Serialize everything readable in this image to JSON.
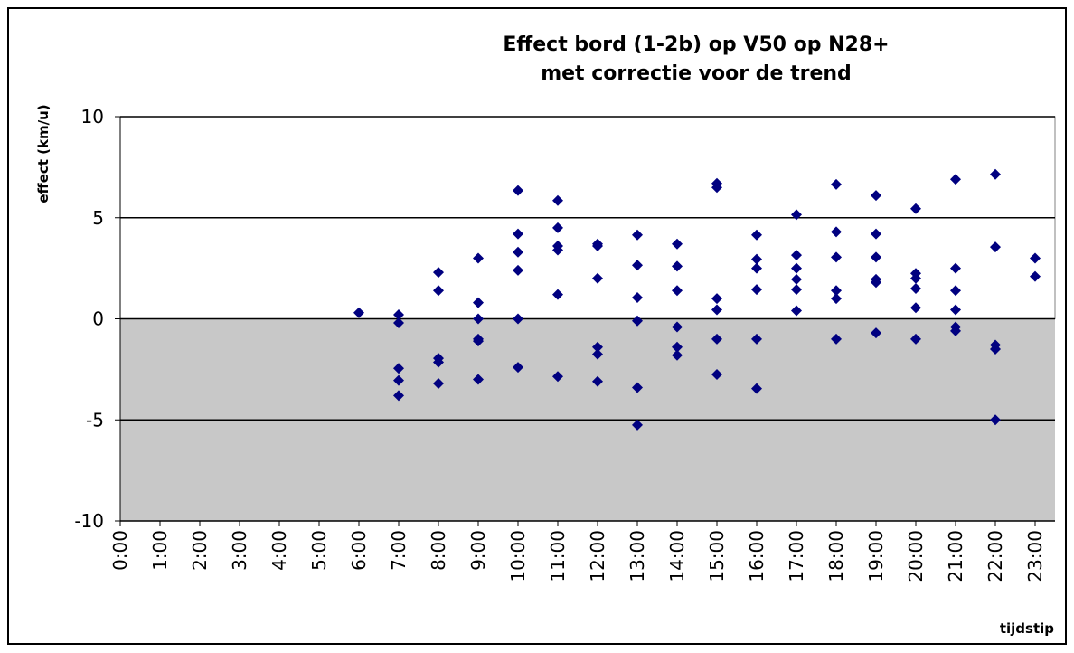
{
  "chart_data": {
    "type": "scatter",
    "title": [
      "Effect bord (1-2b) op V50 op N28+",
      "met correctie voor de trend"
    ],
    "ylabel": "effect (km/u)",
    "xlabel": "tijdstip",
    "color": "#000080",
    "grid": true,
    "xlim": [
      0,
      23.5
    ],
    "ylim": [
      -10,
      10
    ],
    "yticks": [
      -10,
      -5,
      0,
      5,
      10
    ],
    "xticks": [
      {
        "value": 0,
        "label": "0:00"
      },
      {
        "value": 1,
        "label": "1:00"
      },
      {
        "value": 2,
        "label": "2:00"
      },
      {
        "value": 3,
        "label": "3:00"
      },
      {
        "value": 4,
        "label": "4:00"
      },
      {
        "value": 5,
        "label": "5:00"
      },
      {
        "value": 6,
        "label": "6:00"
      },
      {
        "value": 7,
        "label": "7:00"
      },
      {
        "value": 8,
        "label": "8:00"
      },
      {
        "value": 9,
        "label": "9:00"
      },
      {
        "value": 10,
        "label": "10:00"
      },
      {
        "value": 11,
        "label": "11:00"
      },
      {
        "value": 12,
        "label": "12:00"
      },
      {
        "value": 13,
        "label": "13:00"
      },
      {
        "value": 14,
        "label": "14:00"
      },
      {
        "value": 15,
        "label": "15:00"
      },
      {
        "value": 16,
        "label": "16:00"
      },
      {
        "value": 17,
        "label": "17:00"
      },
      {
        "value": 18,
        "label": "18:00"
      },
      {
        "value": 19,
        "label": "19:00"
      },
      {
        "value": 20,
        "label": "20:00"
      },
      {
        "value": 21,
        "label": "21:00"
      },
      {
        "value": 22,
        "label": "22:00"
      },
      {
        "value": 23,
        "label": "23:00"
      }
    ],
    "x": [
      6,
      7,
      7,
      7,
      7,
      7,
      8,
      8,
      8,
      8,
      8,
      9,
      9,
      9,
      9,
      9,
      9,
      10,
      10,
      10,
      10,
      10,
      10,
      11,
      11,
      11,
      11,
      11,
      11,
      12,
      12,
      12,
      12,
      12,
      12,
      13,
      13,
      13,
      13,
      13,
      13,
      14,
      14,
      14,
      14,
      14,
      14,
      15,
      15,
      15,
      15,
      15,
      15,
      16,
      16,
      16,
      16,
      16,
      16,
      17,
      17,
      17,
      17,
      17,
      17,
      18,
      18,
      18,
      18,
      18,
      18,
      19,
      19,
      19,
      19,
      19,
      19,
      20,
      20,
      20,
      20,
      20,
      20,
      21,
      21,
      21,
      21,
      21,
      21,
      22,
      22,
      22,
      22,
      22,
      23,
      23
    ],
    "values": [
      0.3,
      0.2,
      -0.2,
      -2.45,
      -3.05,
      -3.8,
      2.3,
      1.4,
      -1.95,
      -2.15,
      -3.2,
      3.0,
      0.8,
      0,
      -1.0,
      -1.1,
      -3.0,
      6.35,
      4.2,
      3.3,
      2.4,
      0,
      -2.4,
      5.85,
      4.5,
      3.6,
      3.4,
      1.2,
      -2.85,
      3.7,
      3.6,
      2.0,
      -1.4,
      -1.75,
      -3.1,
      4.15,
      2.65,
      1.05,
      -0.1,
      -3.4,
      -5.25,
      3.7,
      2.6,
      1.4,
      -0.4,
      -1.4,
      -1.8,
      6.7,
      6.5,
      1.0,
      0.45,
      -1.0,
      -2.75,
      4.15,
      2.95,
      2.5,
      1.45,
      -1.0,
      -3.45,
      5.15,
      3.15,
      2.5,
      1.95,
      1.45,
      0.4,
      6.65,
      4.3,
      3.05,
      1.4,
      1.0,
      -1.0,
      6.1,
      4.2,
      3.05,
      1.95,
      1.8,
      -0.7,
      5.45,
      2.25,
      2.0,
      1.5,
      0.55,
      -1.0,
      6.9,
      2.5,
      1.4,
      0.45,
      -0.4,
      -0.6,
      7.15,
      3.55,
      -1.3,
      -1.5,
      -5.0,
      3.0,
      2.1
    ]
  }
}
